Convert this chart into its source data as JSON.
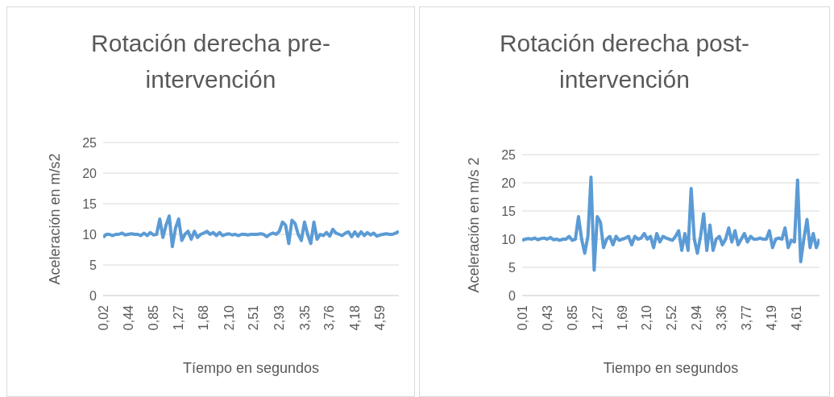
{
  "chart_data": [
    {
      "type": "line",
      "title": "Rotación derecha pre-intervención",
      "xlabel": "Tíempo en segundos",
      "ylabel": "Aceleración en m/s2",
      "x": [
        0.02,
        0.072,
        0.124,
        0.176,
        0.228,
        0.28,
        0.332,
        0.384,
        0.436,
        0.488,
        0.54,
        0.592,
        0.644,
        0.696,
        0.748,
        0.8,
        0.852,
        0.904,
        0.956,
        1.008,
        1.06,
        1.112,
        1.164,
        1.216,
        1.268,
        1.32,
        1.372,
        1.424,
        1.476,
        1.528,
        1.58,
        1.632,
        1.684,
        1.736,
        1.788,
        1.84,
        1.892,
        1.944,
        1.996,
        2.048,
        2.1,
        2.152,
        2.204,
        2.256,
        2.308,
        2.36,
        2.412,
        2.464,
        2.516,
        2.568,
        2.62,
        2.672,
        2.724,
        2.776,
        2.828,
        2.88,
        2.932,
        2.984,
        3.036,
        3.088,
        3.14,
        3.192,
        3.244,
        3.296,
        3.348,
        3.4,
        3.452,
        3.504,
        3.556,
        3.608,
        3.66,
        3.712,
        3.764,
        3.816,
        3.868,
        3.92,
        3.972,
        4.024,
        4.076,
        4.128,
        4.18,
        4.232,
        4.284,
        4.336,
        4.388,
        4.44,
        4.492,
        4.544,
        4.596,
        4.648,
        4.7,
        4.752,
        4.804,
        4.856,
        4.908
      ],
      "series": [
        {
          "color": "#5b9bd5",
          "values": [
            9.5,
            10,
            10,
            9.8,
            10,
            10,
            10.2,
            9.9,
            10,
            10.1,
            10,
            10,
            9.8,
            10.2,
            9.8,
            10.3,
            9.9,
            10,
            12.5,
            9.5,
            11.5,
            13,
            8,
            11,
            12.5,
            9,
            10,
            10.5,
            9.2,
            10.5,
            9.5,
            10,
            10.2,
            10.5,
            10,
            10.3,
            9.8,
            10.3,
            9.8,
            10,
            10.1,
            9.9,
            10,
            9.8,
            10,
            10,
            9.9,
            10,
            10,
            10,
            10.1,
            10,
            9.6,
            10,
            10.2,
            10,
            10.5,
            12,
            11.5,
            8.5,
            12.3,
            11.8,
            10,
            9,
            12,
            10,
            8.5,
            12,
            9.2,
            10,
            9.8,
            10.3,
            9.7,
            10.8,
            10.2,
            10,
            9.8,
            10.2,
            10.4,
            9.6,
            10.4,
            9.7,
            10.4,
            9.8,
            10.3,
            9.9,
            10.2,
            9.7,
            9.9,
            10,
            10.1,
            10,
            10,
            10.2,
            10.5
          ]
        }
      ],
      "xlim": [
        0.02,
        4.908
      ],
      "xticks": [
        {
          "value": 0.02,
          "label": "0,02"
        },
        {
          "value": 0.44,
          "label": "0,44"
        },
        {
          "value": 0.85,
          "label": "0,85"
        },
        {
          "value": 1.27,
          "label": "1,27"
        },
        {
          "value": 1.68,
          "label": "1,68"
        },
        {
          "value": 2.1,
          "label": "2,10"
        },
        {
          "value": 2.51,
          "label": "2,51"
        },
        {
          "value": 2.93,
          "label": "2,93"
        },
        {
          "value": 3.35,
          "label": "3,35"
        },
        {
          "value": 3.76,
          "label": "3,76"
        },
        {
          "value": 4.18,
          "label": "4,18"
        },
        {
          "value": 4.59,
          "label": "4,59"
        }
      ],
      "ylim": [
        0,
        25
      ],
      "yticks": [
        0,
        5,
        10,
        15,
        20,
        25
      ],
      "grid": "y",
      "legend": false,
      "marker": "none",
      "line_style": "solid"
    },
    {
      "type": "line",
      "title": "Rotación derecha post-intervención",
      "xlabel": "Tiempo en segundos",
      "ylabel": "Aceleración en m/s 2",
      "x": [
        0.01,
        0.063,
        0.115,
        0.168,
        0.22,
        0.273,
        0.325,
        0.378,
        0.43,
        0.483,
        0.535,
        0.588,
        0.64,
        0.693,
        0.745,
        0.798,
        0.85,
        0.903,
        0.955,
        1.008,
        1.06,
        1.113,
        1.165,
        1.218,
        1.27,
        1.323,
        1.375,
        1.428,
        1.48,
        1.533,
        1.585,
        1.638,
        1.69,
        1.743,
        1.795,
        1.848,
        1.9,
        1.953,
        2.005,
        2.058,
        2.11,
        2.163,
        2.215,
        2.268,
        2.32,
        2.373,
        2.425,
        2.478,
        2.53,
        2.583,
        2.635,
        2.688,
        2.74,
        2.793,
        2.845,
        2.898,
        2.95,
        3.003,
        3.055,
        3.108,
        3.16,
        3.213,
        3.265,
        3.318,
        3.37,
        3.423,
        3.475,
        3.528,
        3.58,
        3.633,
        3.685,
        3.738,
        3.79,
        3.843,
        3.895,
        3.948,
        4.0,
        4.053,
        4.105,
        4.158,
        4.21,
        4.263,
        4.315,
        4.368,
        4.42,
        4.473,
        4.525,
        4.578,
        4.63,
        4.683,
        4.735,
        4.788,
        4.84,
        4.893,
        4.945,
        4.998
      ],
      "series": [
        {
          "color": "#5b9bd5",
          "values": [
            9.8,
            10,
            10.1,
            10,
            10.2,
            9.9,
            10.1,
            10.2,
            10,
            10.3,
            9.9,
            10,
            9.8,
            10,
            10,
            10.5,
            9.8,
            10,
            14,
            10,
            7.5,
            10.5,
            21,
            4.5,
            14,
            13,
            8.5,
            10,
            10.5,
            9,
            10.5,
            9.8,
            10,
            10.2,
            10.5,
            9,
            10.5,
            10,
            10.2,
            11,
            10,
            10.5,
            8.5,
            11,
            9.5,
            10.5,
            10.2,
            10,
            9.8,
            10.5,
            11.5,
            8,
            11,
            8,
            19,
            10,
            7.5,
            10.5,
            14.5,
            8,
            12.5,
            8,
            10,
            10.5,
            9,
            10,
            12,
            9.5,
            11.5,
            9,
            10,
            11,
            9.5,
            10.5,
            10,
            10,
            10.2,
            10,
            10,
            11.5,
            8.5,
            10,
            10.2,
            10,
            12,
            8.5,
            9.8,
            9.5,
            20.5,
            6,
            10,
            13.5,
            8.5,
            11,
            8.5,
            10
          ]
        }
      ],
      "xlim": [
        0.01,
        4.998
      ],
      "xticks": [
        {
          "value": 0.01,
          "label": "0,01"
        },
        {
          "value": 0.43,
          "label": "0,43"
        },
        {
          "value": 0.85,
          "label": "0,85"
        },
        {
          "value": 1.27,
          "label": "1,27"
        },
        {
          "value": 1.69,
          "label": "1,69"
        },
        {
          "value": 2.1,
          "label": "2,10"
        },
        {
          "value": 2.52,
          "label": "2,52"
        },
        {
          "value": 2.94,
          "label": "2,94"
        },
        {
          "value": 3.36,
          "label": "3,36"
        },
        {
          "value": 3.77,
          "label": "3,77"
        },
        {
          "value": 4.19,
          "label": "4,19"
        },
        {
          "value": 4.61,
          "label": "4,61"
        }
      ],
      "ylim": [
        0,
        25
      ],
      "yticks": [
        0,
        5,
        10,
        15,
        20,
        25
      ],
      "grid": "y",
      "legend": false,
      "marker": "none",
      "line_style": "solid"
    }
  ]
}
